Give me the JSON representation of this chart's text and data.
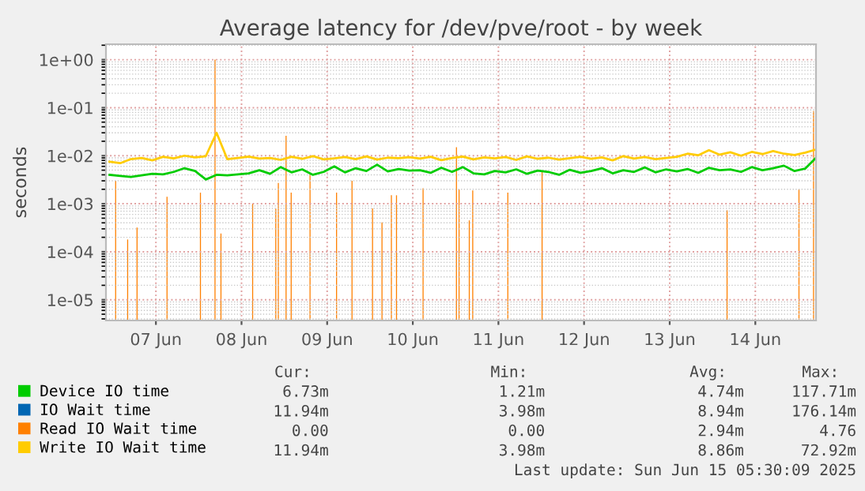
{
  "chart_data": {
    "type": "line",
    "title": "Average latency for /dev/pve/root - by week",
    "ylabel": "seconds",
    "log": "y",
    "grid": true,
    "legend": "bottom",
    "x": [
      "2025-06-06T11:00",
      "2025-06-06T14:00",
      "2025-06-06T17:00",
      "2025-06-06T20:00",
      "2025-06-06T23:00",
      "2025-06-07T02:00",
      "2025-06-07T05:00",
      "2025-06-07T08:00",
      "2025-06-07T11:00",
      "2025-06-07T14:00",
      "2025-06-07T17:00",
      "2025-06-07T20:00",
      "2025-06-07T23:00",
      "2025-06-08T02:00",
      "2025-06-08T05:00",
      "2025-06-08T08:00",
      "2025-06-08T11:00",
      "2025-06-08T14:00",
      "2025-06-08T17:00",
      "2025-06-08T20:00",
      "2025-06-08T23:00",
      "2025-06-09T02:00",
      "2025-06-09T05:00",
      "2025-06-09T08:00",
      "2025-06-09T11:00",
      "2025-06-09T14:00",
      "2025-06-09T17:00",
      "2025-06-09T20:00",
      "2025-06-09T23:00",
      "2025-06-10T02:00",
      "2025-06-10T05:00",
      "2025-06-10T08:00",
      "2025-06-10T11:00",
      "2025-06-10T14:00",
      "2025-06-10T17:00",
      "2025-06-10T20:00",
      "2025-06-10T23:00",
      "2025-06-11T02:00",
      "2025-06-11T05:00",
      "2025-06-11T08:00",
      "2025-06-11T11:00",
      "2025-06-11T14:00",
      "2025-06-11T17:00",
      "2025-06-11T20:00",
      "2025-06-11T23:00",
      "2025-06-12T02:00",
      "2025-06-12T05:00",
      "2025-06-12T08:00",
      "2025-06-12T11:00",
      "2025-06-12T14:00",
      "2025-06-12T17:00",
      "2025-06-12T20:00",
      "2025-06-12T23:00",
      "2025-06-13T02:00",
      "2025-06-13T05:00",
      "2025-06-13T08:00",
      "2025-06-13T11:00",
      "2025-06-13T14:00",
      "2025-06-13T17:00",
      "2025-06-13T20:00",
      "2025-06-13T23:00",
      "2025-06-14T02:00",
      "2025-06-14T05:00",
      "2025-06-14T08:00",
      "2025-06-14T11:00",
      "2025-06-14T14:00",
      "2025-06-14T17:00"
    ],
    "series": [
      {
        "name": "Device IO time",
        "color": "#00cc00",
        "values": [
          0.004,
          0.0038,
          0.0036,
          0.0039,
          0.0042,
          0.0041,
          0.0046,
          0.0055,
          0.0048,
          0.0032,
          0.004,
          0.0039,
          0.0041,
          0.0043,
          0.005,
          0.0042,
          0.0058,
          0.0045,
          0.0052,
          0.004,
          0.0046,
          0.006,
          0.0045,
          0.0055,
          0.0048,
          0.0065,
          0.0047,
          0.0053,
          0.0049,
          0.005,
          0.0044,
          0.0056,
          0.0046,
          0.0058,
          0.0043,
          0.0041,
          0.0048,
          0.0045,
          0.0052,
          0.0042,
          0.0049,
          0.0046,
          0.004,
          0.0051,
          0.0044,
          0.0048,
          0.0055,
          0.0043,
          0.005,
          0.0046,
          0.0057,
          0.0045,
          0.0052,
          0.0047,
          0.0053,
          0.0044,
          0.0056,
          0.005,
          0.0052,
          0.0046,
          0.0058,
          0.005,
          0.0055,
          0.0062,
          0.0048,
          0.0054,
          0.009
        ]
      },
      {
        "name": "IO Wait time",
        "color": "#0066b3",
        "values": [
          null,
          null,
          null,
          null,
          null,
          null,
          null,
          null,
          null,
          null,
          null,
          null,
          null,
          null,
          null,
          null,
          null,
          null,
          null,
          null,
          null,
          null,
          null,
          null,
          null,
          null,
          null,
          null,
          null,
          null,
          null,
          null,
          null,
          null,
          null,
          null,
          null,
          null,
          null,
          null,
          null,
          null,
          null,
          null,
          null,
          null,
          null,
          null,
          null,
          null,
          null,
          null,
          null,
          null,
          null,
          null,
          null,
          null,
          null,
          null,
          null,
          null,
          null,
          null,
          null,
          null,
          null
        ]
      },
      {
        "name": "Read IO Wait time",
        "color": "#ff8000",
        "type": "bar",
        "x": [
          "2025-06-06T12:43",
          "2025-06-06T16:05",
          "2025-06-06T18:43",
          "2025-06-07T03:07",
          "2025-06-07T12:29",
          "2025-06-07T16:34",
          "2025-06-07T18:14",
          "2025-06-08T03:07",
          "2025-06-08T09:36",
          "2025-06-08T10:19",
          "2025-06-08T12:29",
          "2025-06-08T13:55",
          "2025-06-08T19:12",
          "2025-06-09T02:38",
          "2025-06-09T06:58",
          "2025-06-09T12:43",
          "2025-06-09T15:22",
          "2025-06-09T18:00",
          "2025-06-09T19:26",
          "2025-06-10T02:53",
          "2025-06-10T12:14",
          "2025-06-10T12:58",
          "2025-06-10T15:50",
          "2025-06-10T16:48",
          "2025-06-11T02:38",
          "2025-06-11T12:14",
          "2025-06-13T16:05",
          "2025-06-14T12:14",
          "2025-06-14T16:19"
        ],
        "values": [
          0.003,
          0.00018,
          0.00032,
          0.0014,
          0.0017,
          1.0,
          0.00024,
          0.001,
          0.00079,
          0.0027,
          0.026,
          0.0017,
          0.0042,
          0.0017,
          0.003,
          0.0008,
          0.00041,
          0.0015,
          0.0015,
          0.0021,
          0.015,
          0.002,
          0.00045,
          0.0019,
          0.0017,
          0.0049,
          0.00073,
          0.002,
          0.085
        ]
      },
      {
        "name": "Write IO Wait time",
        "color": "#ffcc00",
        "values": [
          0.0075,
          0.007,
          0.0085,
          0.009,
          0.008,
          0.0095,
          0.0088,
          0.01,
          0.0092,
          0.0098,
          0.03,
          0.0085,
          0.009,
          0.0096,
          0.0087,
          0.009,
          0.0082,
          0.0095,
          0.0086,
          0.0098,
          0.0084,
          0.0088,
          0.0094,
          0.0085,
          0.0097,
          0.0083,
          0.0091,
          0.0089,
          0.0093,
          0.0087,
          0.0095,
          0.0081,
          0.009,
          0.0096,
          0.0084,
          0.0092,
          0.0088,
          0.0094,
          0.0082,
          0.0097,
          0.0086,
          0.0091,
          0.0083,
          0.0089,
          0.0095,
          0.0086,
          0.0092,
          0.008,
          0.0098,
          0.0087,
          0.0094,
          0.0085,
          0.009,
          0.0095,
          0.011,
          0.0102,
          0.013,
          0.0105,
          0.0118,
          0.01,
          0.012,
          0.0108,
          0.0125,
          0.011,
          0.0103,
          0.0116,
          0.0135
        ]
      }
    ],
    "xlim": [
      "2025-06-06T10:00",
      "2025-06-14T17:00"
    ],
    "xticks": [
      {
        "value": "2025-06-07",
        "label": "07 Jun"
      },
      {
        "value": "2025-06-08",
        "label": "08 Jun"
      },
      {
        "value": "2025-06-09",
        "label": "09 Jun"
      },
      {
        "value": "2025-06-10",
        "label": "10 Jun"
      },
      {
        "value": "2025-06-11",
        "label": "11 Jun"
      },
      {
        "value": "2025-06-12",
        "label": "12 Jun"
      },
      {
        "value": "2025-06-13",
        "label": "13 Jun"
      },
      {
        "value": "2025-06-14",
        "label": "14 Jun"
      }
    ],
    "ylim": [
      3.7e-06,
      2.1
    ],
    "yticks": [
      {
        "value": 1e-05,
        "label": "1e-05"
      },
      {
        "value": 0.0001,
        "label": "1e-04"
      },
      {
        "value": 0.001,
        "label": "1e-03"
      },
      {
        "value": 0.01,
        "label": "1e-02"
      },
      {
        "value": 0.1,
        "label": "1e-01"
      },
      {
        "value": 1,
        "label": "1e+00"
      }
    ],
    "annotations": [
      "Cur:",
      "Min:",
      "Avg:",
      "Max:",
      "6.73m",
      "1.21m",
      "4.74m",
      "117.71m",
      "11.94m",
      "3.98m",
      "8.94m",
      "176.14m",
      "0.00",
      "0.00",
      "2.94m",
      "4.76",
      "11.94m",
      "3.98m",
      "8.86m",
      "72.92m",
      "Last update: Sun Jun 15 05:30:09 2025"
    ]
  }
}
